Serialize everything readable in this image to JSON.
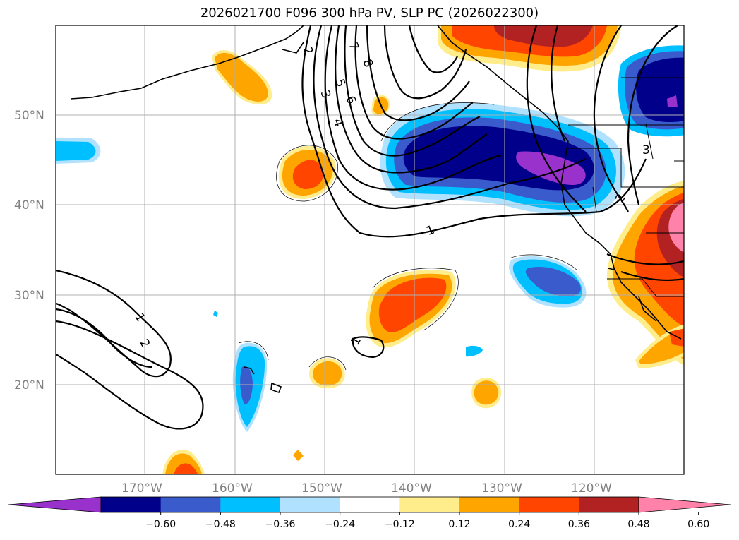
{
  "title": "2026021700 F096 300 hPa PV, SLP PC (2026022300)",
  "chart_data": {
    "type": "map",
    "title": "2026021700 F096 300 hPa PV, SLP PC (2026022300)",
    "lon_range": [
      -180,
      -110
    ],
    "lat_range": [
      10,
      60
    ],
    "lon_ticks": [
      "170°W",
      "160°W",
      "150°W",
      "140°W",
      "130°W",
      "120°W"
    ],
    "lat_ticks": [
      "50°N",
      "40°N",
      "30°N",
      "20°N"
    ],
    "colorbar": {
      "ticks": [
        "−0.60",
        "−0.48",
        "−0.36",
        "−0.24",
        "−0.12",
        "0.12",
        "0.24",
        "0.36",
        "0.48",
        "0.60"
      ],
      "colors": [
        "#9932cc",
        "#00008b",
        "#3a5bcc",
        "#00bfff",
        "#b0e2ff",
        "#ffffff",
        "#ffec8b",
        "#ffa500",
        "#ff4500",
        "#b22222",
        "#ff82ab"
      ],
      "extend": "both"
    },
    "pv_shading": "300 hPa PV anomaly",
    "slp_contours": "SLP PC",
    "contour_labels": [
      {
        "text": "1"
      },
      {
        "text": "2"
      },
      {
        "text": "3"
      },
      {
        "text": "4"
      },
      {
        "text": "5"
      },
      {
        "text": "6"
      },
      {
        "text": "7"
      },
      {
        "text": "8"
      },
      {
        "text": "1"
      },
      {
        "text": "2"
      },
      {
        "text": "1"
      },
      {
        "text": "2"
      },
      {
        "text": "3"
      }
    ]
  }
}
